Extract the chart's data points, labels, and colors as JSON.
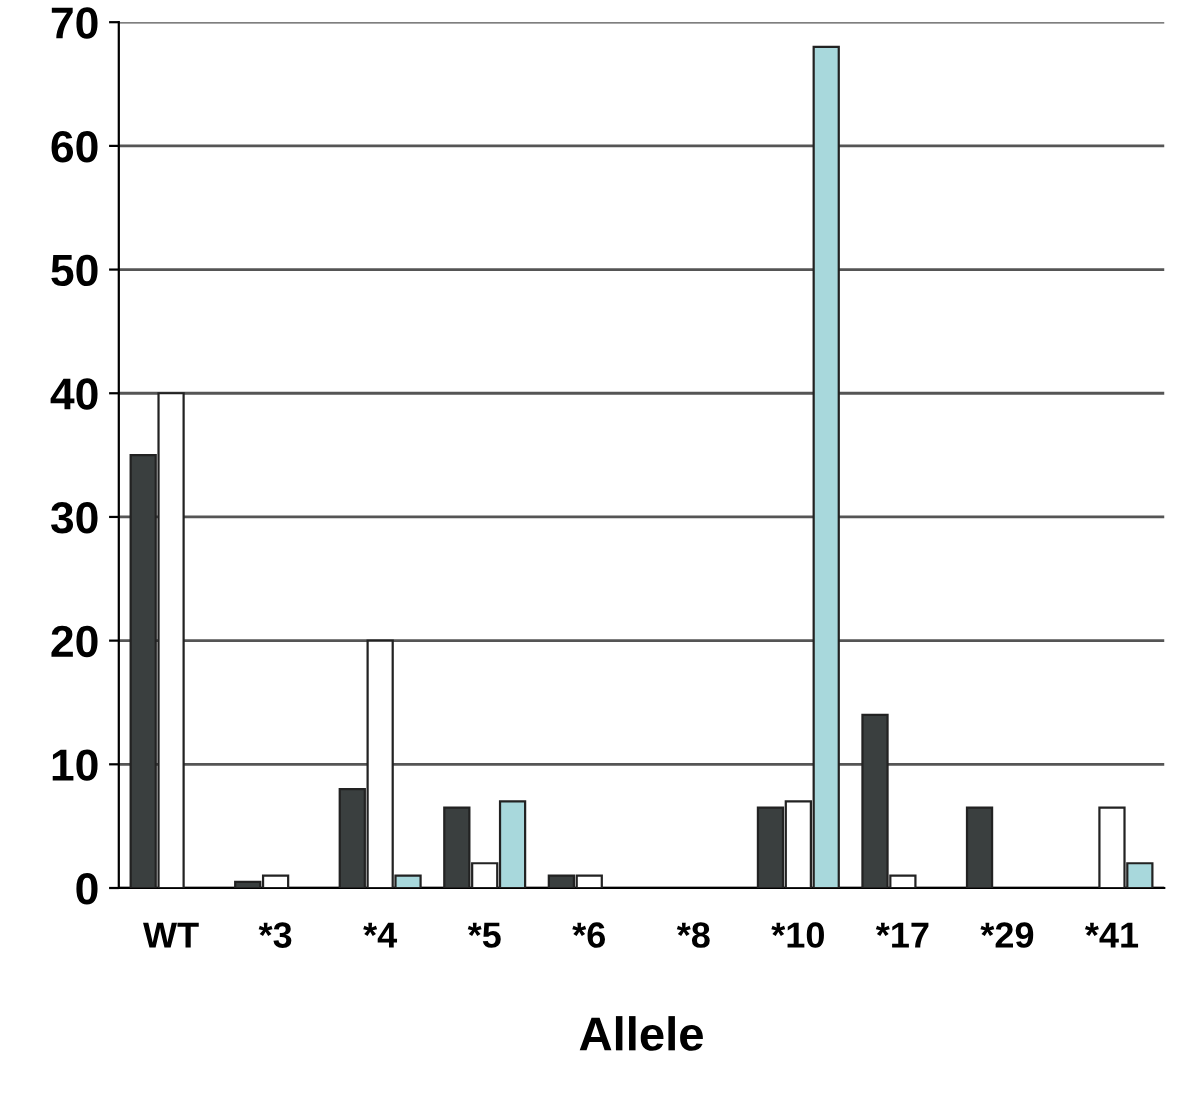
{
  "chart_data": {
    "type": "bar",
    "xlabel": "Allele",
    "categories": [
      "WT",
      "*3",
      "*4",
      "*5",
      "*6",
      "*8",
      "*10",
      "*17",
      "*29",
      "*41"
    ],
    "series": [
      {
        "color": "#3a3f3f",
        "values": [
          35,
          0.5,
          8,
          6.5,
          1,
          0,
          6.5,
          14,
          6.5,
          0
        ]
      },
      {
        "color": "#ffffff",
        "values": [
          40,
          1,
          20,
          2,
          1,
          0,
          7,
          1,
          0,
          6.5
        ]
      },
      {
        "color": "#a8d8dc",
        "values": [
          0,
          0,
          1,
          7,
          0,
          0,
          68,
          0,
          0,
          2
        ]
      }
    ],
    "ylim": [
      0,
      70
    ],
    "yticks": [
      0,
      10,
      20,
      30,
      40,
      50,
      60,
      70
    ],
    "grid": "y"
  }
}
